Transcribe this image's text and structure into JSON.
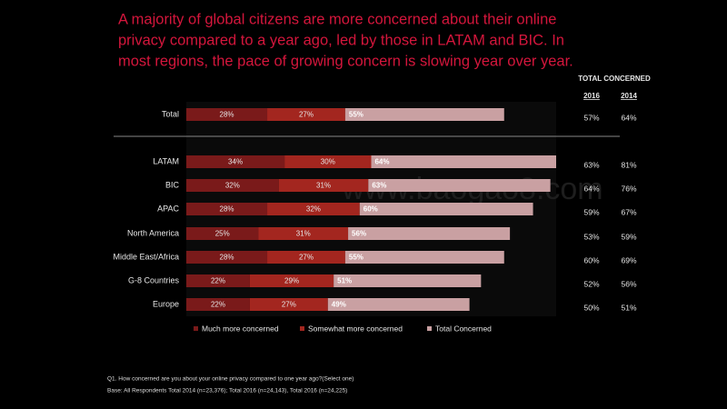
{
  "header": {
    "title": [
      "A majority of global citizens are more concerned about their online",
      "privacy compared to a year ago, led by those in LATAM and BIC. In",
      "most regions, the pace of growing concern is slowing year over year."
    ],
    "watermark": "www.baogao8.com"
  },
  "chart_data": {
    "type": "stacked-bar-horizontal",
    "categories": [
      "Total",
      "LATAM",
      "BIC",
      "APAC",
      "North America",
      "Middle East/Africa",
      "G-8 Countries",
      "Europe"
    ],
    "series": [
      {
        "name": "Much more concerned",
        "color": "#7a1a1a",
        "values": [
          28,
          34,
          32,
          28,
          25,
          28,
          22,
          22
        ],
        "value_labels": [
          "28%",
          "34%",
          "32%",
          "28%",
          "25%",
          "28%",
          "22%",
          "22%"
        ]
      },
      {
        "name": "Somewhat more concerned",
        "color": "#a3261f",
        "values": [
          27,
          30,
          31,
          32,
          31,
          27,
          29,
          27
        ],
        "value_labels": [
          "27%",
          "30%",
          "31%",
          "32%",
          "31%",
          "27%",
          "29%",
          "27%"
        ]
      },
      {
        "name": "Total Concerned",
        "color": "#c9a0a2",
        "values": [
          55,
          64,
          63,
          60,
          56,
          55,
          51,
          49
        ],
        "value_labels": [
          "55%",
          "64%",
          "63%",
          "60%",
          "56%",
          "55%",
          "51%",
          "49%"
        ]
      }
    ]
  },
  "table": {
    "title": "TOTAL CONCERNED",
    "columns": [
      "2016",
      "2014"
    ],
    "rows": [
      [
        "57%",
        "64%"
      ],
      [
        "63%",
        "81%"
      ],
      [
        "64%",
        "76%"
      ],
      [
        "59%",
        "67%"
      ],
      [
        "53%",
        "59%"
      ],
      [
        "60%",
        "69%"
      ],
      [
        "52%",
        "56%"
      ],
      [
        "50%",
        "51%"
      ]
    ]
  },
  "footnotes": [
    "Q1. How concerned are you about your online privacy compared to one year ago?(Select one)",
    "Base: All Respondents Total  2014 (n=23,376); Total 2016 (n=24,143), Total 2016 (n=24,225)"
  ]
}
